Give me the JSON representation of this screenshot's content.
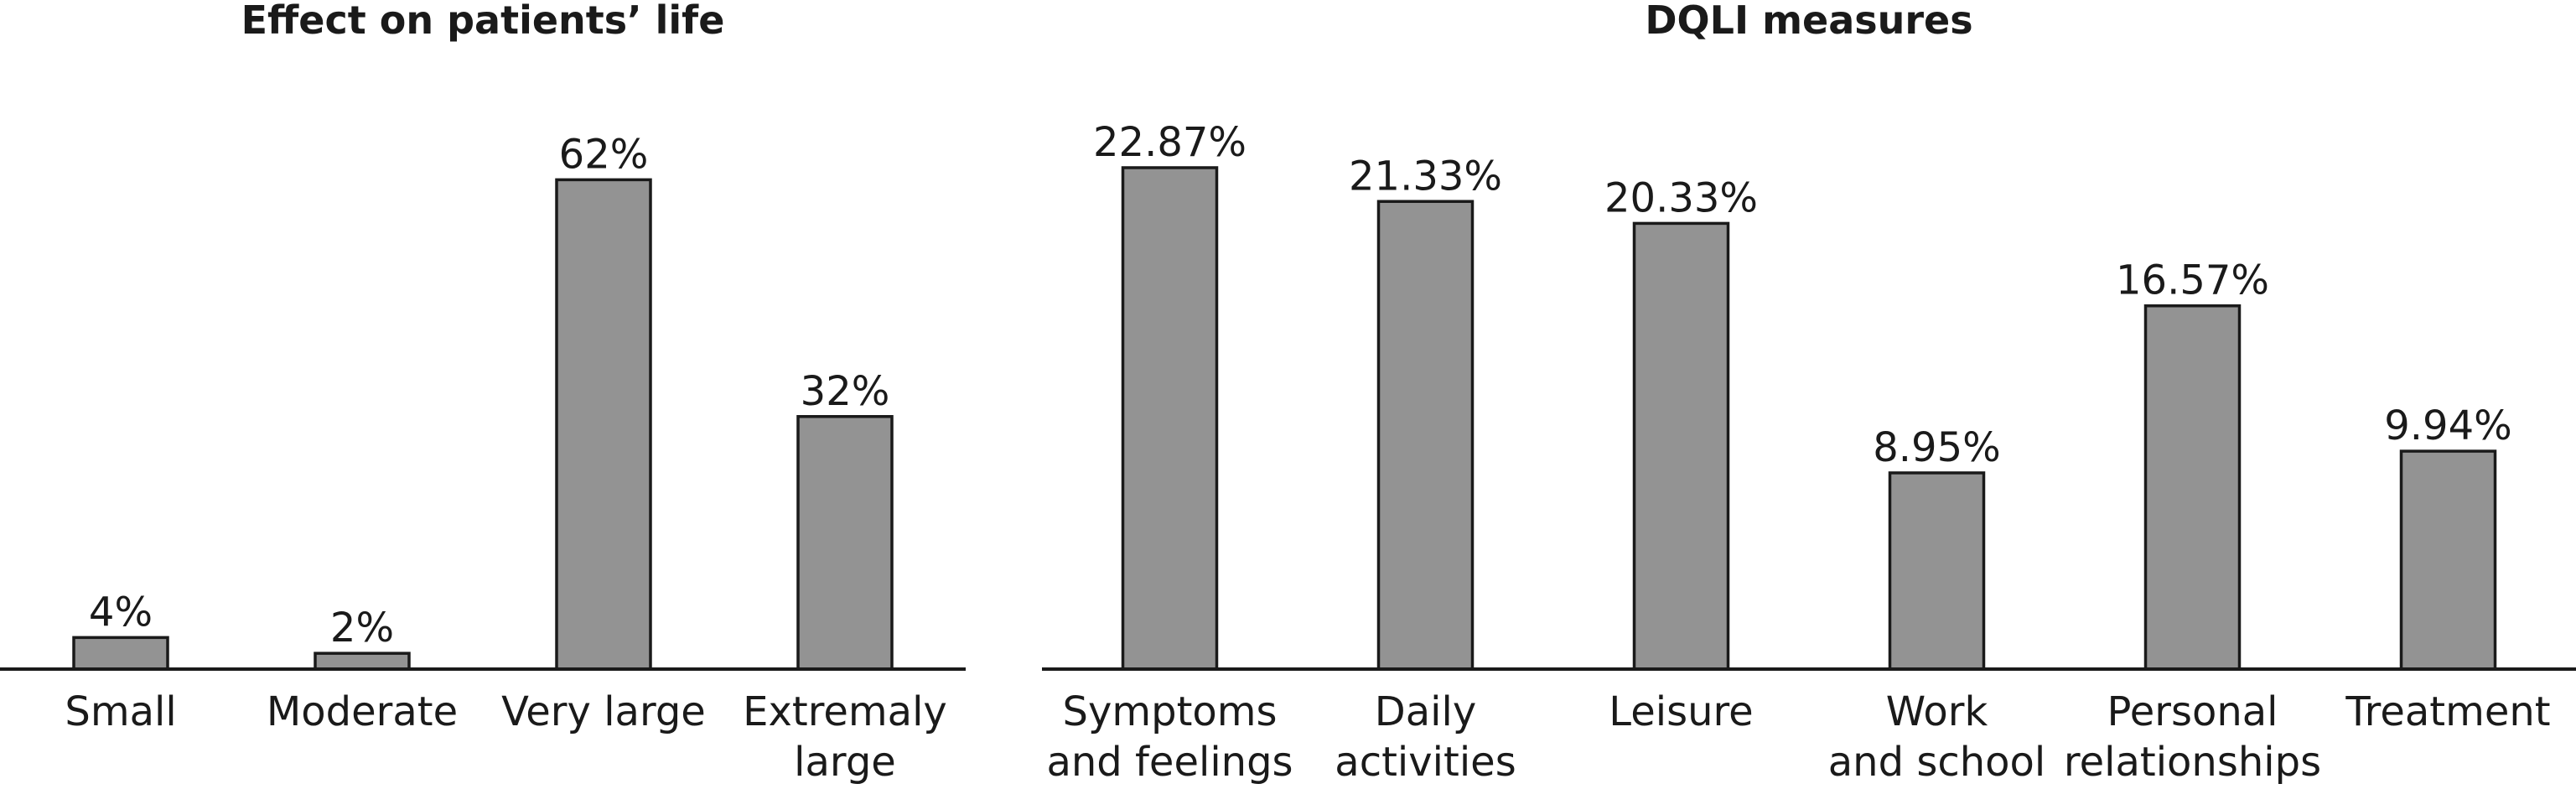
{
  "chart_data": [
    {
      "type": "bar",
      "title": "Effect on patients’ life",
      "categories": [
        [
          "Small"
        ],
        [
          "Moderate"
        ],
        [
          "Very large"
        ],
        [
          "Extremaly",
          "large"
        ]
      ],
      "values": [
        4,
        2,
        62,
        32
      ],
      "value_labels": [
        "4%",
        "2%",
        "62%",
        "32%"
      ],
      "color": "#939393",
      "ylim": [
        0,
        75
      ]
    },
    {
      "type": "bar",
      "title": "DQLI measures",
      "categories": [
        [
          "Symptoms",
          "and feelings"
        ],
        [
          "Daily",
          "activities"
        ],
        [
          "Leisure"
        ],
        [
          "Work",
          "and school"
        ],
        [
          "Personal",
          "relationships"
        ],
        [
          "Treatment"
        ]
      ],
      "values": [
        22.87,
        21.33,
        20.33,
        8.95,
        16.57,
        9.94
      ],
      "value_labels": [
        "22.87%",
        "21.33%",
        "20.33%",
        "8.95%",
        "16.57%",
        "9.94%"
      ],
      "color": "#939393",
      "ylim": [
        0,
        27
      ]
    }
  ]
}
